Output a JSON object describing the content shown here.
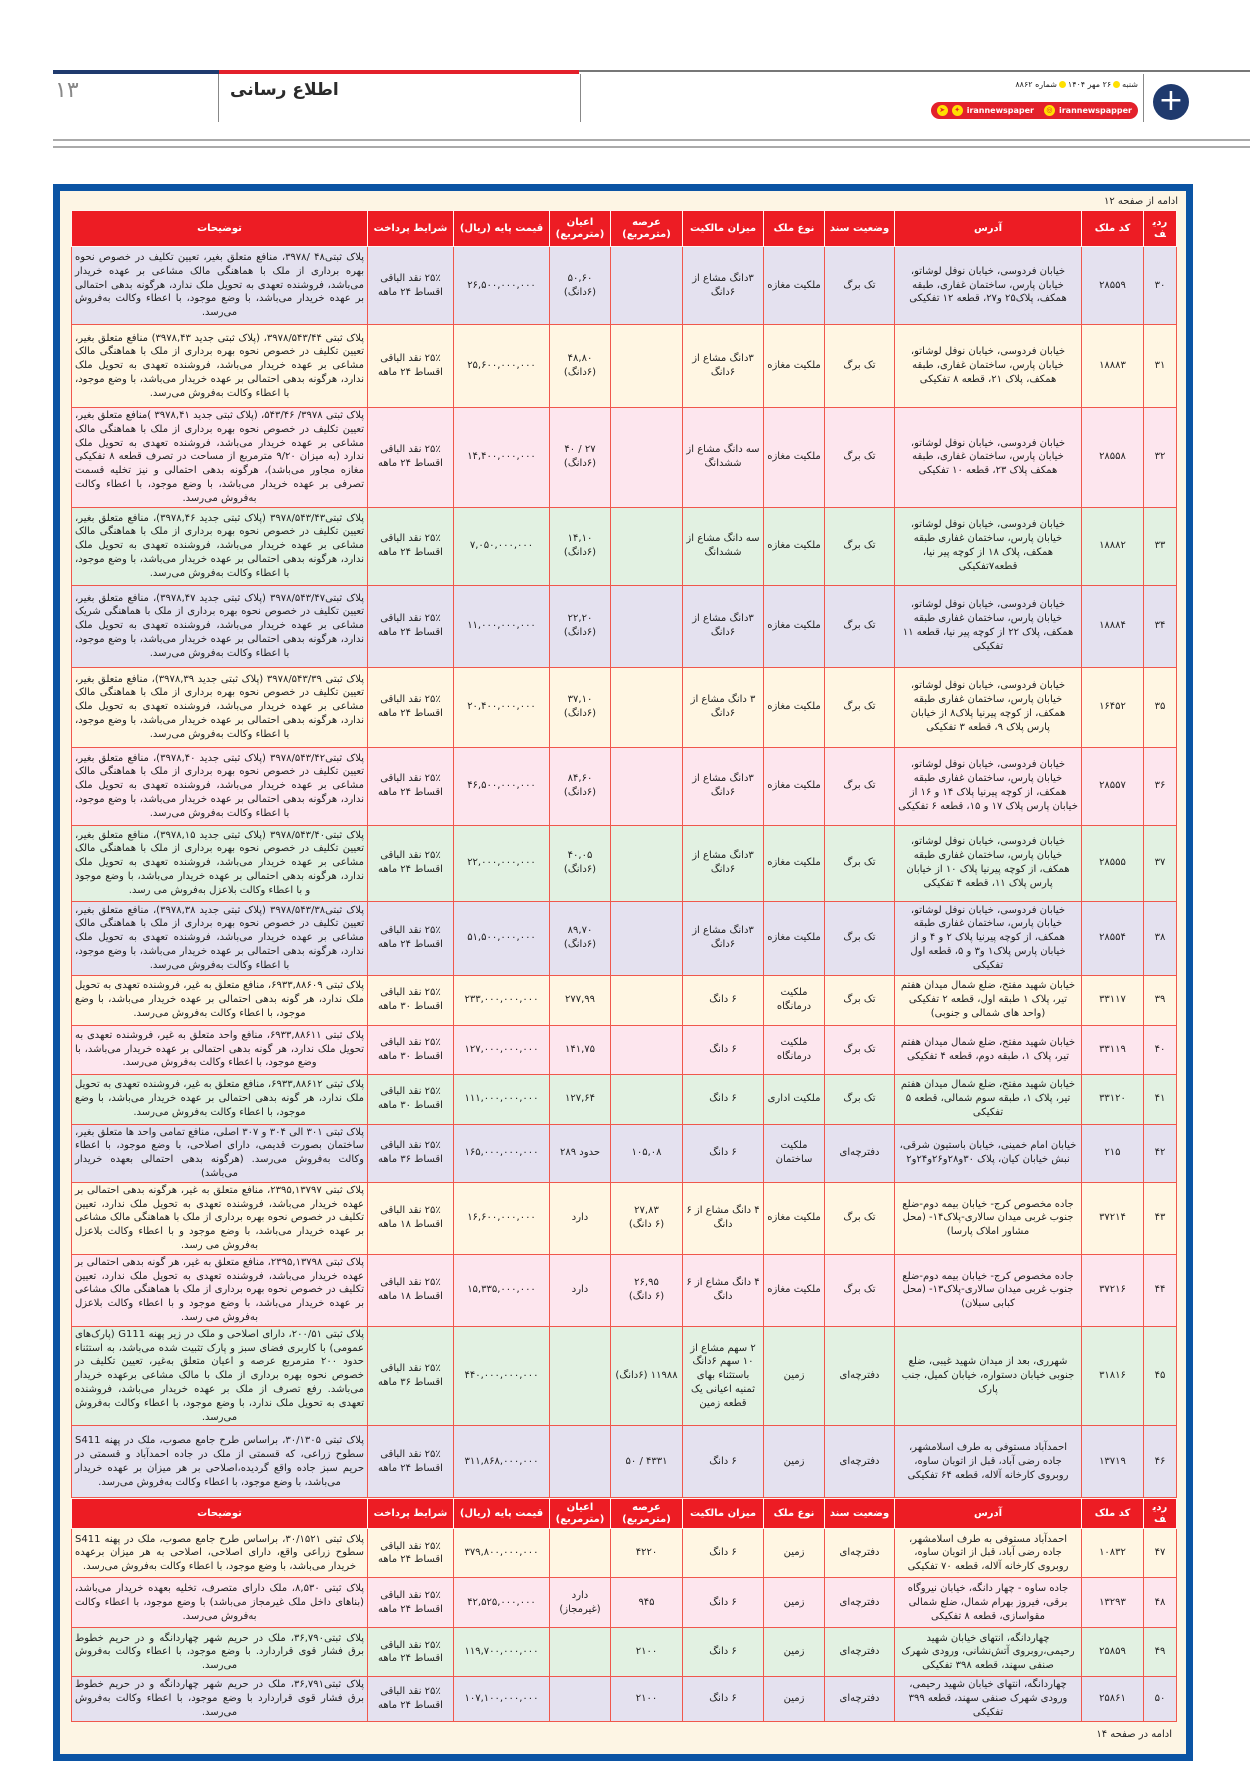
{
  "masthead": {
    "page_number": "۱۳",
    "section_title": "اطلاع رسانی",
    "date_line": [
      "شنبه",
      "۲۶ مهر ۱۴۰۴",
      "شماره ۸۸۶۲"
    ],
    "social": [
      "irannewspaper",
      "irannewspapper"
    ],
    "colors": {
      "blue": "#1f3a6e",
      "red": "#e3212b"
    }
  },
  "notice": {
    "continued_from": "ادامه از صفحه ۱۲",
    "continued_to": "ادامه در صفحه ۱۴",
    "colors": {
      "frame": "#0b54a4",
      "header": "#ed1c24",
      "background": "#fdf5e4"
    }
  },
  "columns": [
    "ردیف",
    "کد ملک",
    "آدرس",
    "وضعیت سند",
    "نوع ملک",
    "میزان مالکیت",
    "عرصه (مترمربع)",
    "اعیان (مترمربع)",
    "قیمت پایه (ریال)",
    "شرایط پرداخت",
    "توضیحات"
  ],
  "rows": [
    {
      "row": "۳۰",
      "code": "۲۸۵۵۹",
      "address": "خیابان فردوسی، خیابان نوفل لوشاتو، خیابان پارس، ساختمان غفاری، طبقه همکف، پلاک۲۵ و۲۷، قطعه ۱۲ تفکیکی",
      "deed": "تک برگ",
      "type": "ملکیت مغازه",
      "share": "۳دانگ مشاع از ۶دانگ",
      "arseh": "",
      "aayan": "۵۰,۶۰\n(۶دانگ)",
      "price": "۲۶,۵۰۰,۰۰۰,۰۰۰",
      "payment": "۲۵٪ نقد الباقی\nاقساط ۲۴ ماهه",
      "desc": "پلاک ثبتی۴۸ /۳۹۷۸، منافع متعلق بغیر، تعیین تکلیف در خصوص نحوه بهره برداری از ملک با هماهنگی مالک مشاعی بر عهده خریدار می‌باشد، فروشنده تعهدی به تحویل ملک ندارد، هرگونه بدهی احتمالی بر عهده خریدار می‌باشد، با وضع موجود، با اعطاء وکالت به‌فروش می‌رسد."
    },
    {
      "row": "۳۱",
      "code": "۱۸۸۸۳",
      "address": "خیابان فردوسی، خیابان نوفل لوشاتو، خیابان پارس، ساختمان غفاری، طبقه همکف، پلاک ۲۱، قطعه ۸ تفکیکی",
      "deed": "تک برگ",
      "type": "ملکیت مغازه",
      "share": "۳دانگ مشاع از ۶دانگ",
      "arseh": "",
      "aayan": "۴۸,۸۰\n(۶دانگ)",
      "price": "۲۵,۶۰۰,۰۰۰,۰۰۰",
      "payment": "۲۵٪ نقد الباقی\nاقساط ۲۴ ماهه",
      "desc": "پلاک ثبتی ۳۹۷۸/۵۴۳/۴۴، (پلاک ثبتی جدید ۳۹۷۸,۴۳) منافع متعلق بغیر، تعیین تکلیف در خصوص نحوه بهره برداری از ملک با هماهنگی مالک مشاعی بر عهده خریدار می‌باشد، فروشنده تعهدی به تحویل ملک ندارد، هرگونه بدهی احتمالی بر عهده خریدار می‌باشد، با وضع موجود، با اعطاء وکالت به‌فروش می‌رسد."
    },
    {
      "row": "۳۲",
      "code": "۲۸۵۵۸",
      "address": "خیابان فردوسی، خیابان نوفل لوشاتو، خیابان پارس، ساختمان غفاری، طبقه همکف پلاک ۲۳، قطعه ۱۰ تفکیکی",
      "deed": "تک برگ",
      "type": "ملکیت مغازه",
      "share": "سه دانگ مشاع از ششدانگ",
      "arseh": "",
      "aayan": "۲۷ / ۴۰\n(۶دانگ)",
      "price": "۱۴,۴۰۰,۰۰۰,۰۰۰",
      "payment": "۲۵٪ نقد الباقی\nاقساط ۲۴ ماهه",
      "desc": "پلاک ثبتی ۳۹۷۸/ ۵۴۳/۴۶، (پلاک ثبتی جدید ۳۹۷۸,۴۱ )منافع متعلق بغیر، تعیین تکلیف در خصوص نحوه بهره برداری از ملک با هماهنگی مالک مشاعی بر عهده خریدار می‌باشد، فروشنده تعهدی به تحویل ملک ندارد (به میزان ۹/۲۰ مترمربع از مساحت در تصرف قطعه ۸ تفکیکی مغازه مجاور می‌باشد)، هرگونه بدهی احتمالی و نیز تخلیه قسمت تصرفی بر عهده خریدار می‌باشد، با وضع موجود، با اعطاء وکالت به‌فروش می‌رسد."
    },
    {
      "row": "۳۳",
      "code": "۱۸۸۸۲",
      "address": "خیابان فردوسی، خیابان نوفل لوشاتو، خیابان پارس، ساختمان غفاری طبقه همکف، پلاک ۱۸ از کوچه پیر نیا، قطعه۷تفکیکی",
      "deed": "تک برگ",
      "type": "ملکیت مغازه",
      "share": "سه دانگ مشاع از ششدانگ",
      "arseh": "",
      "aayan": "۱۴,۱۰\n(۶دانگ)",
      "price": "۷,۰۵۰,۰۰۰,۰۰۰",
      "payment": "۲۵٪ نقد الباقی\nاقساط ۲۴ ماهه",
      "desc": "پلاک ثبتی۳۹۷۸/۵۴۳/۴۳ (پلاک ثبتی جدید ۳۹۷۸,۴۶)، منافع متعلق بغیر، تعیین تکلیف در خصوص نحوه بهره برداری از ملک با هماهنگی مالک مشاعی بر عهده خریدار می‌باشد، فروشنده تعهدی به تحویل ملک ندارد، هرگونه بدهی احتمالی بر عهده خریدار می‌باشد، با وضع موجود، با اعطاء وکالت به‌فروش می‌رسد."
    },
    {
      "row": "۳۴",
      "code": "۱۸۸۸۴",
      "address": "خیابان فردوسی، خیابان نوفل لوشاتو، خیابان پارس، ساختمان غفاری طبقه همکف، پلاک ۲۲ از کوچه پیر نیا، قطعه ۱۱ تفکیکی",
      "deed": "تک برگ",
      "type": "ملکیت مغازه",
      "share": "۳دانگ مشاع از ۶دانگ",
      "arseh": "",
      "aayan": "۲۲,۲۰\n(۶دانگ)",
      "price": "۱۱,۰۰۰,۰۰۰,۰۰۰",
      "payment": "۲۵٪ نقد الباقی\nاقساط ۲۴ ماهه",
      "desc": "پلاک ثبتی۳۹۷۸/۵۴۳/۴۷ (پلاک ثبتی جدید ۳۹۷۸,۴۷)، منافع متعلق بغیر، تعیین تکلیف در خصوص نحوه بهره برداری از ملک با هماهنگی شریک مشاعی بر عهده خریدار می‌باشد، فروشنده تعهدی به تحویل ملک ندارد، هرگونه بدهی احتمالی بر عهده خریدار می‌باشد، با وضع موجود، با اعطاء وکالت به‌فروش می‌رسد."
    },
    {
      "row": "۳۵",
      "code": "۱۶۴۵۲",
      "address": "خیابان فردوسی، خیابان نوفل لوشاتو، خیابان پارس، ساختمان غفاری طبقه همکف، از کوچه پیرنیا پلاک۸ از خیابان پارس پلاک ۹، قطعه ۳ تفکیکی",
      "deed": "تک برگ",
      "type": "ملکیت مغازه",
      "share": "۳ دانگ مشاع از ۶دانگ",
      "arseh": "",
      "aayan": "۳۷,۱۰\n(۶دانگ)",
      "price": "۲۰,۴۰۰,۰۰۰,۰۰۰",
      "payment": "۲۵٪ نقد الباقی\nاقساط ۲۴ ماهه",
      "desc": "پلاک ثبتی ۳۹۷۸/۵۴۳/۳۹ (پلاک ثبتی جدید ۳۹۷۸,۳۹)، منافع متعلق بغیر، تعیین تکلیف در خصوص نحوه بهره برداری از ملک با هماهنگی مالک مشاعی بر عهده خریدار می‌باشد، فروشنده تعهدی به تحویل ملک ندارد، هرگونه بدهی احتمالی بر عهده خریدار می‌باشد، با وضع موجود، با اعطاء وکالت به‌فروش می‌رسد."
    },
    {
      "row": "۳۶",
      "code": "۲۸۵۵۷",
      "address": "خیابان فردوسی، خیابان نوفل لوشاتو، خیابان پارس، ساختمان غفاری طبقه همکف، از کوچه پیرنیا پلاک ۱۴ و ۱۶ از خیابان پارس پلاک ۱۷ و ۱۵، قطعه ۶ تفکیکی",
      "deed": "تک برگ",
      "type": "ملکیت مغازه",
      "share": "۳دانگ مشاع از ۶دانگ",
      "arseh": "",
      "aayan": "۸۴,۶۰\n(۶دانگ)",
      "price": "۴۶,۵۰۰,۰۰۰,۰۰۰",
      "payment": "۲۵٪ نقد الباقی\nاقساط ۲۴ ماهه",
      "desc": "پلاک ثبتی۳۹۷۸/۵۴۳/۴۲ (پلاک ثبتی جدید ۳۹۷۸,۴۰)، منافع متعلق بغیر، تعیین تکلیف در خصوص نحوه بهره برداری از ملک با هماهنگی مالک مشاعی بر عهده خریدار می‌باشد، فروشنده تعهدی به تحویل ملک ندارد، هرگونه بدهی احتمالی بر عهده خریدار می‌باشد، با وضع موجود، با اعطاء وکالت به‌فروش می‌رسد."
    },
    {
      "row": "۳۷",
      "code": "۲۸۵۵۵",
      "address": "خیابان فردوسی، خیابان نوفل لوشاتو، خیابان پارس، ساختمان غفاری طبقه همکف، از کوچه پیرنیا پلاک ۱۰ از خیابان پارس پلاک ۱۱، قطعه ۴ تفکیکی",
      "deed": "تک برگ",
      "type": "ملکیت مغازه",
      "share": "۳دانگ مشاع از ۶دانگ",
      "arseh": "",
      "aayan": "۴۰,۰۵\n(۶دانگ)",
      "price": "۲۲,۰۰۰,۰۰۰,۰۰۰",
      "payment": "۲۵٪ نقد الباقی\nاقساط ۲۴ ماهه",
      "desc": "پلاک ثبتی۳۹۷۸/۵۴۳/۴۰ (پلاک ثبتی جدید ۳۹۷۸,۱۵)، منافع متعلق بغیر، تعیین تکلیف در خصوص نحوه بهره برداری از ملک با هماهنگی مالک مشاعی بر عهده خریدار می‌باشد، فروشنده تعهدی به تحویل ملک ندارد، هرگونه بدهی احتمالی بر عهده خریدار می‌باشد، با وضع موجود و با اعطاء وکالت بلاعزل به‌فروش می رسد."
    },
    {
      "row": "۳۸",
      "code": "۲۸۵۵۴",
      "address": "خیابان فردوسی، خیابان نوفل لوشاتو، خیابان پارس، ساختمان غفاری طبقه همکف، از کوچه پیرنیا پلاک ۲ و ۴ و از خیابان پارس پلاک۱ و۳ و ۵، قطعه اول تفکیکی",
      "deed": "تک برگ",
      "type": "ملکیت مغازه",
      "share": "۳دانگ مشاع از ۶دانگ",
      "arseh": "",
      "aayan": "۸۹,۷۰\n(۶دانگ)",
      "price": "۵۱,۵۰۰,۰۰۰,۰۰۰",
      "payment": "۲۵٪ نقد الباقی\nاقساط ۲۴ ماهه",
      "desc": "پلاک ثبتی۳۹۷۸/۵۴۳/۳۸ (پلاک ثبتی جدید ۳۹۷۸,۳۸)، منافع متعلق بغیر، تعیین تکلیف در خصوص نحوه بهره برداری از ملک با هماهنگی مالک مشاعی بر عهده خریدار می‌باشد، فروشنده تعهدی به تحویل ملک ندارد، هرگونه بدهی احتمالی بر عهده خریدار می‌باشد، با وضع موجود، با اعطاء وکالت به‌فروش می‌رسد."
    },
    {
      "row": "۳۹",
      "code": "۳۳۱۱۷",
      "address": "خیابان شهید مفتح، ضلع شمال میدان هفتم تیر، پلاک ۱ طبقه اول، قطعه ۲ تفکیکی (واحد های شمالی و جنوبی)",
      "deed": "تک برگ",
      "type": "ملکیت درمانگاه",
      "share": "۶ دانگ",
      "arseh": "",
      "aayan": "۲۷۷,۹۹",
      "price": "۲۳۳,۰۰۰,۰۰۰,۰۰۰",
      "payment": "۲۵٪ نقد الباقی\nاقساط ۳۰ ماهه",
      "desc": "پلاک ثبتی ۶۹۳۳,۸۸۶۰۹، منافع متعلق به غیر، فروشنده تعهدی به تحویل ملک ندارد، هر گونه بدهی احتمالی بر عهده خریدار می‌باشد، با وضع موجود، با اعطاء وکالت به‌فروش می‌رسد."
    },
    {
      "row": "۴۰",
      "code": "۳۳۱۱۹",
      "address": "خیابان شهید مفتح، ضلع شمال میدان هفتم تیر، پلاک ۱، طبقه دوم، قطعه ۴ تفکیکی",
      "deed": "تک برگ",
      "type": "ملکیت درمانگاه",
      "share": "۶ دانگ",
      "arseh": "",
      "aayan": "۱۴۱,۷۵",
      "price": "۱۲۷,۰۰۰,۰۰۰,۰۰۰",
      "payment": "۲۵٪ نقد الباقی\nاقساط ۳۰ ماهه",
      "desc": "پلاک ثبتی ۶۹۳۳,۸۸۶۱۱، منافع واحد متعلق به غیر، فروشنده تعهدی به تحویل ملک ندارد، هر گونه بدهی احتمالی بر عهده خریدار می‌باشد، با وضع موجود، با اعطاء وکالت به‌فروش می‌رسد."
    },
    {
      "row": "۴۱",
      "code": "۳۳۱۲۰",
      "address": "خیابان شهید مفتح، ضلع شمال میدان هفتم تیر، پلاک ۱، طبقه سوم شمالی، قطعه ۵ تفکیکی",
      "deed": "تک برگ",
      "type": "ملکیت اداری",
      "share": "۶ دانگ",
      "arseh": "",
      "aayan": "۱۲۷,۶۴",
      "price": "۱۱۱,۰۰۰,۰۰۰,۰۰۰",
      "payment": "۲۵٪ نقد الباقی\nاقساط ۳۰ ماهه",
      "desc": "پلاک ثبتی ۶۹۳۳,۸۸۶۱۲، منافع متعلق به غیر، فروشنده تعهدی به تحویل ملک ندارد، هر گونه بدهی احتمالی بر عهده خریدار می‌باشد، با وضع موجود، با اعطاء وکالت به‌فروش می‌رسد."
    },
    {
      "row": "۴۲",
      "code": "۲۱۵",
      "address": "خیابان امام خمینی، خیابان باستیون شرقی، نبش خیابان کیان، پلاک ۳۰و۲۸و۲۶و۲۴و۲",
      "deed": "دفترچه‌ای",
      "type": "ملکیت ساختمان",
      "share": "۶ دانگ",
      "arseh": "۱۰۵,۰۸",
      "aayan": "حدود ۲۸۹",
      "price": "۱۶۵,۰۰۰,۰۰۰,۰۰۰",
      "payment": "۲۵٪ نقد الباقی\nاقساط ۳۶ ماهه",
      "desc": "پلاک ثبتی ۳۰۱ الی ۳۰۴ و ۳۰۷ اصلی، منافع تمامی واحد ها متعلق بغیر، ساختمان بصورت قدیمی، دارای اصلاحی، با وضع موجود، با اعطاء وکالت به‌فروش می‌رسد. (هرگونه بدهی احتمالی بعهده خریدار می‌باشد)"
    },
    {
      "row": "۴۳",
      "code": "۳۷۲۱۴",
      "address": "جاده مخصوص کرج- خیابان بیمه دوم-ضلع جنوب غربی میدان سالاری-پلاک۱۴- (محل مشاور املاک پارسا)",
      "deed": "تک برگ",
      "type": "ملکیت مغازه",
      "share": "۴ دانگ مشاع از ۶ دانگ",
      "arseh": "۲۷,۸۳\n(۶ دانگ)",
      "aayan": "دارد",
      "price": "۱۶,۶۰۰,۰۰۰,۰۰۰",
      "payment": "۲۵٪ نقد الباقی\nاقساط ۱۸ ماهه",
      "desc": "پلاک ثبتی ۲۳۹۵,۱۳۷۹۷، منافع متعلق به غیر، هرگونه بدهی احتمالی بر عهده خریدار می‌باشد، فروشنده تعهدی به تحویل ملک ندارد، تعیین تکلیف در خصوص نحوه بهره برداری از ملک با هماهنگی مالک مشاعی بر عهده خریدار می‌باشد، با وضع موجود و با اعطاء وکالت بلاعزل به‌فروش می رسد."
    },
    {
      "row": "۴۴",
      "code": "۳۷۲۱۶",
      "address": "جاده مخصوص کرج- خیابان بیمه دوم-ضلع جنوب غربی میدان سالاری-پلاک۱۳- (محل کبابی سبلان)",
      "deed": "تک برگ",
      "type": "ملکیت مغازه",
      "share": "۴ دانگ مشاع از ۶ دانگ",
      "arseh": "۲۶,۹۵\n(۶ دانگ)",
      "aayan": "دارد",
      "price": "۱۵,۳۳۵,۰۰۰,۰۰۰",
      "payment": "۲۵٪ نقد الباقی\nاقساط ۱۸ ماهه",
      "desc": "پلاک ثبتی ۲۳۹۵,۱۳۷۹۸، منافع متعلق به غیر، هر گونه بدهی احتمالی بر عهده خریدار می‌باشد، فروشنده تعهدی به تحویل ملک ندارد، تعیین تکلیف در خصوص نحوه بهره برداری از ملک با هماهنگی مالک مشاعی بر عهده خریدار می‌باشد، با وضع موجود و با اعطاء وکالت بلاعزل به‌فروش می رسد."
    },
    {
      "row": "۴۵",
      "code": "۳۱۸۱۶",
      "address": "شهرری، بعد از میدان شهید غیبی، ضلع جنوبی خیابان دستواره، خیابان کمیل، جنب پارک",
      "deed": "دفترچه‌ای",
      "type": "زمین",
      "share": "۲ سهم مشاع از ۱۰ سهم ۶دانگ باستثناء بهای ثمنیه اعیانی یک قطعه زمین",
      "arseh": "۱۱۹۸۸ (۶دانگ)",
      "aayan": "",
      "price": "۴۴۰,۰۰۰,۰۰۰,۰۰۰",
      "payment": "۲۵٪ نقد الباقی\nاقساط ۳۶ ماهه",
      "desc": "پلاک ثبتی ۲۰۰/۵۱، دارای اصلاحی و ملک در زیر پهنه G111 (پارک‌های عمومی) با کاربری فضای سبز و پارک تثبیت شده می‌باشد، به استثناء حدود ۲۰۰ مترمربع عرصه و اعیان متعلق به‌غیر، تعیین تکلیف در خصوص نحوه بهره برداری از ملک با مالک مشاعی برعهده خریدار می‌باشد. رفع تصرف از ملک بر عهده خریدار می‌باشد، فروشنده تعهدی به تحویل ملک ندارد، با وضع موجود، با اعطاء وکالت به‌فروش می‌رسد."
    },
    {
      "row": "۴۶",
      "code": "۱۳۷۱۹",
      "address": "احمدآباد مستوفی به طرف اسلامشهر، جاده رضی آباد، قبل از اتوبان ساوه، روبروی کارخانه آلاله، قطعه ۶۴ تفکیکی",
      "deed": "دفترچه‌ای",
      "type": "زمین",
      "share": "۶ دانگ",
      "arseh": "۴۳۳۱ / ۵۰",
      "aayan": "",
      "price": "۳۱۱,۸۶۸,۰۰۰,۰۰۰",
      "payment": "۲۵٪ نقد الباقی\nاقساط ۲۴ ماهه",
      "desc": "پلاک ثبتی ۳۰/۱۳۰۵، براساس طرح جامع مصوب، ملک در پهنه S411 سطوح زراعی، که قسمتی از ملک در جاده احمدآباد و قسمتی در حریم سبز جاده واقع گردیده،اصلاحی بر هر میزان بر عهده خریدار می‌باشد، با وضع موجود، با اعطاء وکالت به‌فروش می‌رسد."
    },
    {
      "row": "۴۷",
      "code": "۱۰۸۳۲",
      "address": "احمدآباد مستوفی به طرف اسلامشهر، جاده رضی آباد، قبل از اتوبان ساوه، روبروی کارخانه آلاله، قطعه ۷۰ تفکیکی",
      "deed": "دفترچه‌ای",
      "type": "زمین",
      "share": "۶ دانگ",
      "arseh": "۴۲۲۰",
      "aayan": "",
      "price": "۳۷۹,۸۰۰,۰۰۰,۰۰۰",
      "payment": "۲۵٪ نقد الباقی\nاقساط ۲۴ ماهه",
      "desc": "پلاک ثبتی ۳۰/۱۵۲۱، براساس طرح جامع مصوب، ملک در پهنه S411 سطوح زراعی واقع، دارای اصلاحی، اصلاحی به هر میزان برعهده خریدار می‌باشد، با وضع موجود، با اعطاء وکالت به‌فروش می‌رسد."
    },
    {
      "row": "۴۸",
      "code": "۱۳۲۹۳",
      "address": "جاده ساوه - چهار دانگه، خیابان نیروگاه برقی، فیروز بهرام شمال، ضلع شمالی مقواسازی، قطعه ۸ تفکیکی",
      "deed": "دفترچه‌ای",
      "type": "زمین",
      "share": "۶ دانگ",
      "arseh": "۹۴۵",
      "aayan": "دارد\n(غیرمجاز)",
      "price": "۴۲,۵۲۵,۰۰۰,۰۰۰",
      "payment": "۲۵٪ نقد الباقی\nاقساط ۲۴ ماهه",
      "desc": "پلاک ثبتی ۸,۵۳۰، ملک دارای متصرف، تخلیه بعهده خریدار می‌باشد، (بناهای داخل ملک غیرمجاز می‌باشد) با وضع موجود، با اعطاء وکالت به‌فروش می‌رسد."
    },
    {
      "row": "۴۹",
      "code": "۲۵۸۵۹",
      "address": "چهاردانگه، انتهای خیابان شهید رحیمی،روبروی آتش‌نشانی، ورودی شهرک صنفی سهند، قطعه ۳۹۸ تفکیکی",
      "deed": "دفترچه‌ای",
      "type": "زمین",
      "share": "۶ دانگ",
      "arseh": "۲۱۰۰",
      "aayan": "",
      "price": "۱۱۹,۷۰۰,۰۰۰,۰۰۰",
      "payment": "۲۵٪ نقد الباقی\nاقساط ۲۴ ماهه",
      "desc": "پلاک ثبتی۳۶,۷۹۰، ملک در حریم شهر چهاردانگه و در حریم خطوط برق فشار قوی قراردارد. با وضع موجود، با اعطاء وکالت به‌فروش می‌رسد."
    },
    {
      "row": "۵۰",
      "code": "۲۵۸۶۱",
      "address": "چهاردانگه، انتهای خیابان شهید رحیمی، ورودی شهرک صنفی سهند، قطعه ۳۹۹ تفکیکی",
      "deed": "دفترچه‌ای",
      "type": "زمین",
      "share": "۶ دانگ",
      "arseh": "۲۱۰۰",
      "aayan": "",
      "price": "۱۰۷,۱۰۰,۰۰۰,۰۰۰",
      "payment": "۲۵٪ نقد الباقی\nاقساط ۲۴ ماهه",
      "desc": "پلاک ثبتی۳۶,۷۹۱، ملک در حریم شهر چهاردانگه و در حریم خطوط برق فشار قوی قراردارد با وضع موجود، با اعطاء وکالت به‌فروش می‌رسد."
    }
  ],
  "row_colors": [
    "#e4e1ef",
    "#fff6e3",
    "#fde6ee",
    "#e2f1e2"
  ]
}
